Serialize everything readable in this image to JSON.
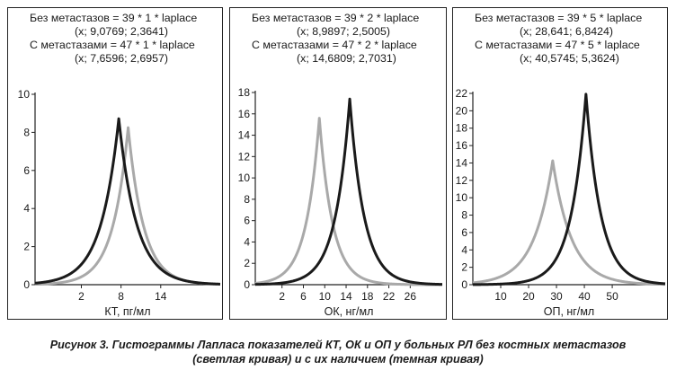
{
  "chart_data": [
    {
      "type": "line",
      "legend": {
        "line1": "Без метастазов = 39 * 1 * laplace",
        "line2": "(x; 9,0769; 2,3641)",
        "line3": "С метастазами = 47 * 1 * laplace",
        "line4": "(x; 7,6596; 2,6957)"
      },
      "xlabel": "КТ, пг/мл",
      "xlim": [
        -5,
        23
      ],
      "ylim": [
        0,
        10
      ],
      "yticks": [
        "0",
        "2",
        "4",
        "6",
        "8",
        "10"
      ],
      "xticks": [
        "2",
        "8",
        "14"
      ],
      "series": [
        {
          "shade": "light",
          "n": 39,
          "bin": 1,
          "loc": 9.0769,
          "scale": 2.3641,
          "color": "#a9a9a9"
        },
        {
          "shade": "dark",
          "n": 47,
          "bin": 1,
          "loc": 7.6596,
          "scale": 2.6957,
          "color": "#1a1a1a"
        }
      ]
    },
    {
      "type": "line",
      "legend": {
        "line1": "Без метастазов = 39 * 2 * laplace",
        "line2": "(x; 8,9897; 2,5005)",
        "line3": "С метастазами = 47 * 2 * laplace",
        "line4": "(x; 14,6809; 2,7031)"
      },
      "xlabel": "ОК, нг/мл",
      "xlim": [
        -3,
        32
      ],
      "ylim": [
        0,
        18
      ],
      "yticks": [
        "0",
        "2",
        "4",
        "6",
        "8",
        "10",
        "12",
        "14",
        "16",
        "18"
      ],
      "xticks": [
        "2",
        "6",
        "10",
        "14",
        "18",
        "22",
        "26"
      ],
      "series": [
        {
          "shade": "light",
          "n": 39,
          "bin": 2,
          "loc": 8.9897,
          "scale": 2.5005,
          "color": "#a9a9a9"
        },
        {
          "shade": "dark",
          "n": 47,
          "bin": 2,
          "loc": 14.6809,
          "scale": 2.7031,
          "color": "#1a1a1a"
        }
      ]
    },
    {
      "type": "line",
      "legend": {
        "line1": "Без метастазов = 39 * 5 * laplace",
        "line2": "(x; 28,641; 6,8424)",
        "line3": "С метастазами = 47 * 5 * laplace",
        "line4": "(x; 40,5745; 5,3624)"
      },
      "xlabel": "ОП, нг/мл",
      "xlim": [
        0,
        69
      ],
      "ylim": [
        0,
        22
      ],
      "yticks": [
        "0",
        "2",
        "4",
        "6",
        "8",
        "10",
        "12",
        "14",
        "16",
        "18",
        "20",
        "22"
      ],
      "xticks": [
        "10",
        "20",
        "30",
        "40",
        "50"
      ],
      "series": [
        {
          "shade": "light",
          "n": 39,
          "bin": 5,
          "loc": 28.641,
          "scale": 6.8424,
          "color": "#a9a9a9"
        },
        {
          "shade": "dark",
          "n": 47,
          "bin": 5,
          "loc": 40.5745,
          "scale": 5.3624,
          "color": "#1a1a1a"
        }
      ]
    }
  ],
  "caption": {
    "line1": "Рисунок 3. Гистограммы Лапласа показателей КТ, ОК и ОП у больных РЛ без костных метастазов",
    "line2": "(светлая кривая) и с их наличием (темная кривая)"
  }
}
